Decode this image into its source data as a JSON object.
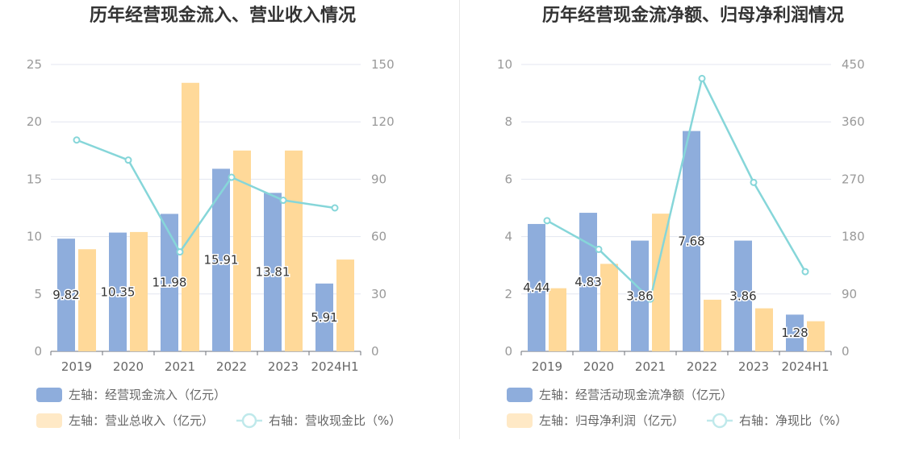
{
  "chart_data": [
    {
      "type": "bar",
      "title": "历年经营现金流入、营业收入情况",
      "categories": [
        "2019",
        "2020",
        "2021",
        "2022",
        "2023",
        "2024H1"
      ],
      "left_axis": {
        "ylim": [
          0,
          25
        ],
        "ticks": [
          "0",
          "5",
          "10",
          "15",
          "20",
          "25"
        ]
      },
      "right_axis": {
        "ylim": [
          0,
          150
        ],
        "ticks": [
          "0",
          "30",
          "60",
          "90",
          "120",
          "150"
        ]
      },
      "series": [
        {
          "name": "左轴：经营现金流入（亿元）",
          "axis": "left",
          "kind": "bar",
          "color": "#8eaddc",
          "values": [
            9.82,
            10.35,
            11.98,
            15.91,
            13.81,
            5.91
          ],
          "labels": [
            "9.82",
            "10.35",
            "11.98",
            "15.91",
            "13.81",
            "5.91"
          ]
        },
        {
          "name": "左轴：营业总收入（亿元）",
          "axis": "left",
          "kind": "bar",
          "color": "#ffd999",
          "values": [
            8.9,
            10.4,
            23.4,
            17.5,
            17.5,
            8.0
          ]
        },
        {
          "name": "右轴：营收现金比（%）",
          "axis": "right",
          "kind": "line",
          "color": "#86d6d9",
          "values": [
            110.5,
            100,
            52,
            91,
            79,
            75
          ]
        }
      ],
      "grid": true,
      "legend_position": "bottom-left"
    },
    {
      "type": "bar",
      "title": "历年经营现金流净额、归母净利润情况",
      "categories": [
        "2019",
        "2020",
        "2021",
        "2022",
        "2023",
        "2024H1"
      ],
      "left_axis": {
        "ylim": [
          0,
          10
        ],
        "ticks": [
          "0",
          "2",
          "4",
          "6",
          "8",
          "10"
        ]
      },
      "right_axis": {
        "ylim": [
          0,
          450
        ],
        "ticks": [
          "0",
          "90",
          "180",
          "270",
          "360",
          "450"
        ]
      },
      "series": [
        {
          "name": "左轴：经营活动现金流净额（亿元）",
          "axis": "left",
          "kind": "bar",
          "color": "#8eaddc",
          "values": [
            4.44,
            4.83,
            3.86,
            7.68,
            3.86,
            1.28
          ],
          "labels": [
            "4.44",
            "4.83",
            "3.86",
            "7.68",
            "3.86",
            "1.28"
          ]
        },
        {
          "name": "左轴：归母净利润（亿元）",
          "axis": "left",
          "kind": "bar",
          "color": "#ffd999",
          "values": [
            2.2,
            3.05,
            4.8,
            1.8,
            1.5,
            1.05
          ]
        },
        {
          "name": "右轴：净现比（%）",
          "axis": "right",
          "kind": "line",
          "color": "#86d6d9",
          "values": [
            205,
            160,
            82,
            428,
            265,
            125
          ]
        }
      ],
      "grid": true,
      "legend_position": "bottom-left"
    }
  ]
}
